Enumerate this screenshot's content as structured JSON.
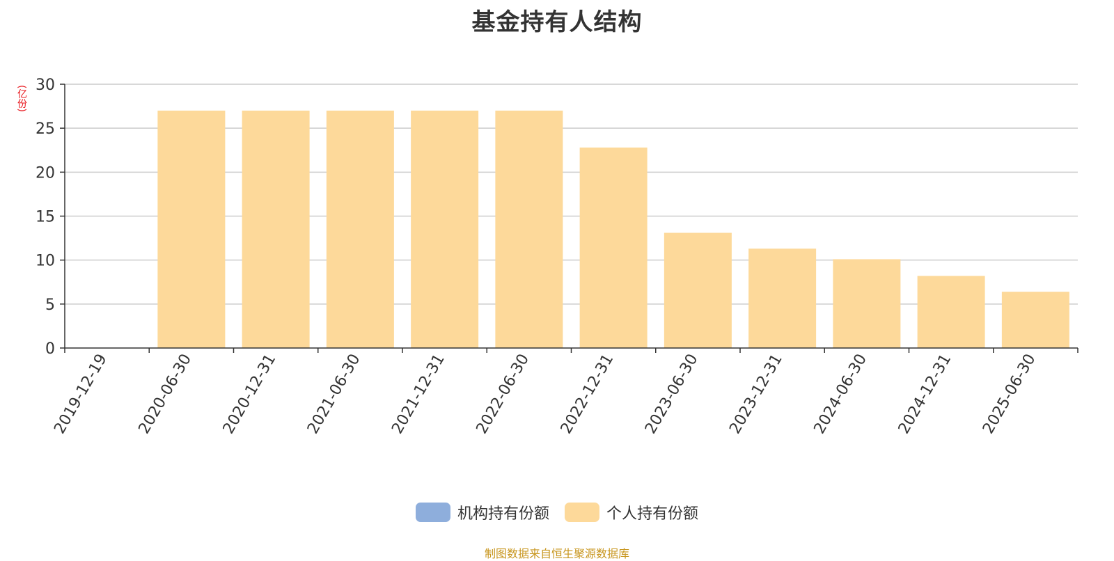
{
  "title": "基金持有人结构",
  "y_unit": "(亿份)",
  "source_note": "制图数据来自恒生聚源数据库",
  "legend": [
    {
      "label": "机构持有份额",
      "color": "#8eaedc"
    },
    {
      "label": "个人持有份额",
      "color": "#fdd99a"
    }
  ],
  "chart_data": {
    "type": "bar",
    "stacked": true,
    "title": "基金持有人结构",
    "ylabel": "(亿份)",
    "xlabel": "",
    "ylim": [
      0,
      30
    ],
    "yticks": [
      0,
      5,
      10,
      15,
      20,
      25,
      30
    ],
    "grid": true,
    "legend_position": "bottom",
    "categories": [
      "2019-12-19",
      "2020-06-30",
      "2020-12-31",
      "2021-06-30",
      "2021-12-31",
      "2022-06-30",
      "2022-12-31",
      "2023-06-30",
      "2023-12-31",
      "2024-06-30",
      "2024-12-31",
      "2025-06-30"
    ],
    "series": [
      {
        "name": "机构持有份额",
        "color": "#8eaedc",
        "values": [
          0,
          0,
          0,
          0,
          0,
          0,
          0,
          0,
          0,
          0,
          0,
          0
        ]
      },
      {
        "name": "个人持有份额",
        "color": "#fdd99a",
        "values": [
          0,
          27.0,
          27.0,
          27.0,
          27.0,
          27.0,
          22.8,
          13.1,
          11.3,
          10.1,
          8.2,
          6.4
        ]
      }
    ],
    "colors": {
      "axis": "#333333",
      "grid": "#cccccc",
      "tick_text": "#333333"
    }
  }
}
